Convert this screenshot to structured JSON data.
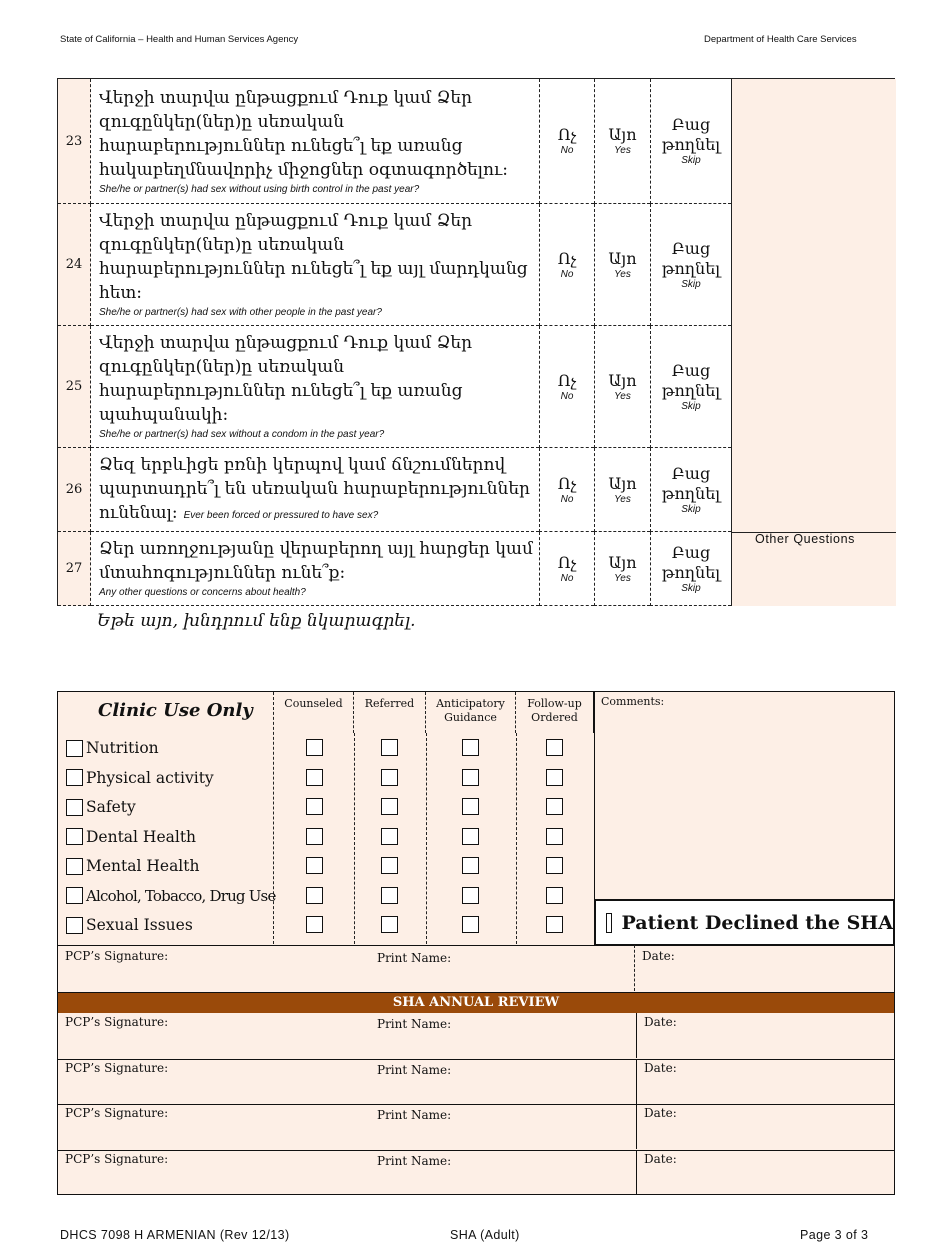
{
  "header": {
    "left": "State of California – Health and Human Services Agency",
    "right": "Department of Health Care Services"
  },
  "questions": [
    {
      "num": "23",
      "text": "Վերջի տարվա ընթացքում Դուք կամ Ձեր զուգընկեր(ներ)ը սեռական հարաբերություններ ունեցե՞լ եք առանց հակաբեղմնավորիչ միջոցներ օգտագործելու:",
      "english": "She/he or partner(s) had sex without using birth control in the past year?"
    },
    {
      "num": "24",
      "text": "Վերջի տարվա ընթացքում Դուք կամ Ձեր զուգընկեր(ներ)ը սեռական հարաբերություններ ունեցե՞լ եք այլ մարդկանց հետ:",
      "english": "She/he or partner(s) had sex with other people in the past year?"
    },
    {
      "num": "25",
      "text": "Վերջի տարվա ընթացքում Դուք կամ Ձեր զուգընկեր(ներ)ը սեռական հարաբերություններ ունեցե՞լ եք առանց պահպանակի:",
      "english": "She/he or partner(s) had sex without a condom in the past year?"
    },
    {
      "num": "26",
      "text": "Ձեզ երբևիցե բռնի կերպով կամ ճնշումներով պարտադրե՞լ են սեռական հարաբերություններ ունենալ:",
      "english": "Ever been forced or pressured to have sex?"
    },
    {
      "num": "27",
      "text": "Ձեր առողջությանը վերաբերող այլ հարցեր կամ մտահոգություններ ունե՞ք:",
      "english": "Any other questions or concerns about health?"
    }
  ],
  "options": {
    "no": "Ոչ",
    "no_en": "No",
    "yes": "Այո",
    "yes_en": "Yes",
    "skip": "Բաց թողնել",
    "skip_en": "Skip"
  },
  "other_questions": "Other Questions",
  "if_yes": "Եթե այո, խնդրում ենք նկարագրել.",
  "clinic": {
    "title": "Clinic Use Only",
    "columns": [
      "Counseled",
      "Referred",
      "Anticipatory Guidance",
      "Follow-up Ordered"
    ],
    "comments": "Comments:",
    "items": [
      "Nutrition",
      "Physical activity",
      "Safety",
      "Dental Health",
      "Mental Health",
      "Alcohol, Tobacco, Drug Use",
      "Sexual Issues"
    ],
    "declined": "Patient Declined the SHA",
    "pcp_signature": "PCP’s Signature:",
    "print_name": "Print Name:",
    "date": "Date:",
    "annual_review": "SHA ANNUAL REVIEW"
  },
  "footer": {
    "left": "DHCS 7098 H ARMENIAN (Rev 12/13)",
    "center": "SHA (Adult)",
    "right": "Page 3 of 3"
  },
  "colors": {
    "peach": "#fdefe6",
    "review_bar": "#9a4a0a"
  }
}
